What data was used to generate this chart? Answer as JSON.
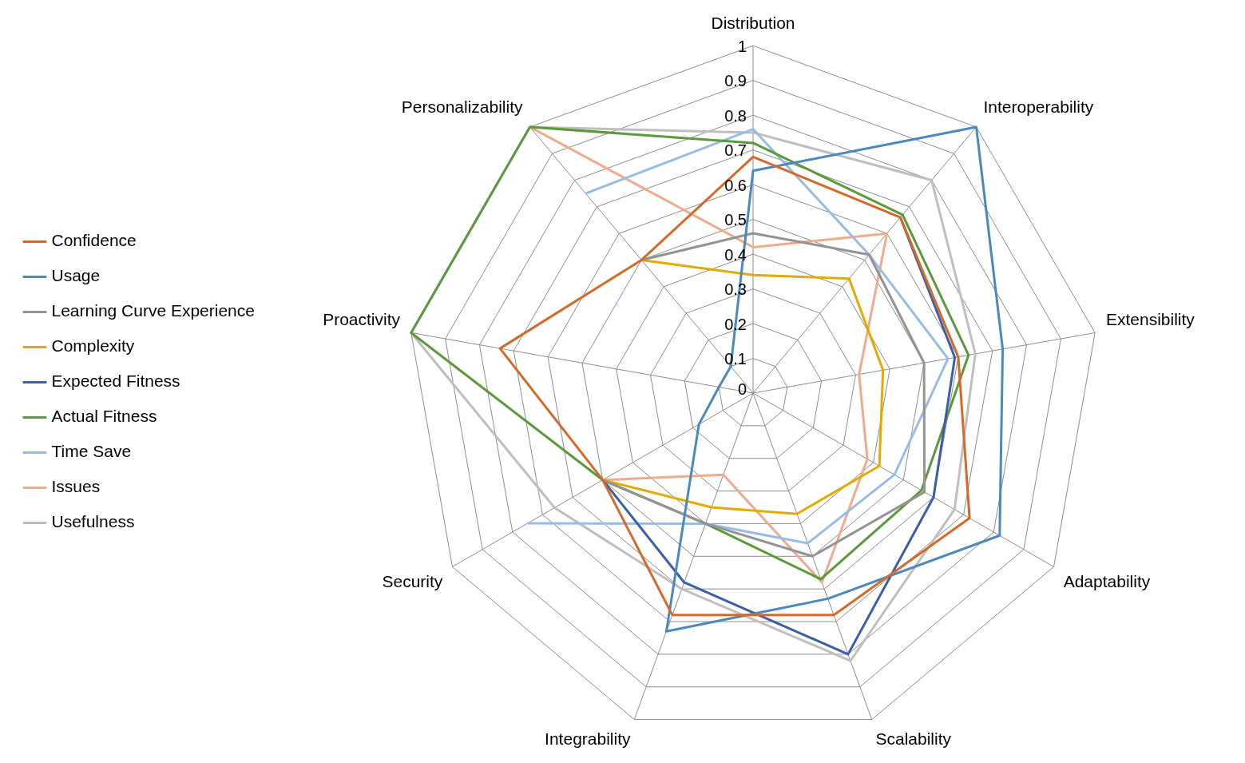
{
  "chart_data": {
    "type": "radar",
    "categories": [
      "Distribution",
      "Interoperability",
      "Extensibility",
      "Adaptability",
      "Scalability",
      "Integrability",
      "Security",
      "Proactivity",
      "Personalizability"
    ],
    "ylim": [
      0,
      1
    ],
    "yticks": [
      0,
      0.1,
      0.2,
      0.3,
      0.4,
      0.5,
      0.6,
      0.7,
      0.8,
      0.9,
      1
    ],
    "grid": true,
    "legend": "left",
    "marker": "none",
    "series": [
      {
        "name": "Confidence",
        "color": "#d4692a",
        "values": [
          0.68,
          0.66,
          0.6,
          0.72,
          0.68,
          0.68,
          0.5,
          0.74,
          0.5
        ]
      },
      {
        "name": "Usage",
        "color": "#4a88c0",
        "values": [
          0.64,
          1,
          0.73,
          0.82,
          0.63,
          0.73,
          0.18,
          0.1,
          0.1
        ]
      },
      {
        "name": "Learning Curve Experience",
        "color": "#939393",
        "values": [
          0.46,
          0.52,
          0.5,
          0.57,
          0.5,
          0.4,
          0.5,
          null,
          0.5
        ]
      },
      {
        "name": "Complexity",
        "color": "#e3aa00",
        "values": [
          0.34,
          0.43,
          0.38,
          0.42,
          0.37,
          0.35,
          0.5,
          null,
          0.5
        ]
      },
      {
        "name": "Expected Fitness",
        "color": "#3a5ea8",
        "values": [
          null,
          0.66,
          0.59,
          0.6,
          0.8,
          0.58,
          0.5,
          null,
          null
        ]
      },
      {
        "name": "Actual Fitness",
        "color": "#5b9a3a",
        "values": [
          0.72,
          0.67,
          0.63,
          0.56,
          0.57,
          0.4,
          0.5,
          1,
          1
        ]
      },
      {
        "name": "Time Save",
        "color": "#98bde4",
        "values": [
          0.76,
          0.52,
          0.57,
          0.47,
          0.46,
          0.4,
          0.75,
          null,
          0.75
        ]
      },
      {
        "name": "Issues",
        "color": "#f2aa8c",
        "values": [
          0.42,
          0.6,
          0.31,
          0.38,
          0.58,
          0.25,
          0.5,
          null,
          1
        ]
      },
      {
        "name": "Usefulness",
        "color": "#bfbfbf",
        "values": [
          0.75,
          0.8,
          0.65,
          0.67,
          0.82,
          0.6,
          0.66,
          1,
          1
        ]
      }
    ]
  }
}
